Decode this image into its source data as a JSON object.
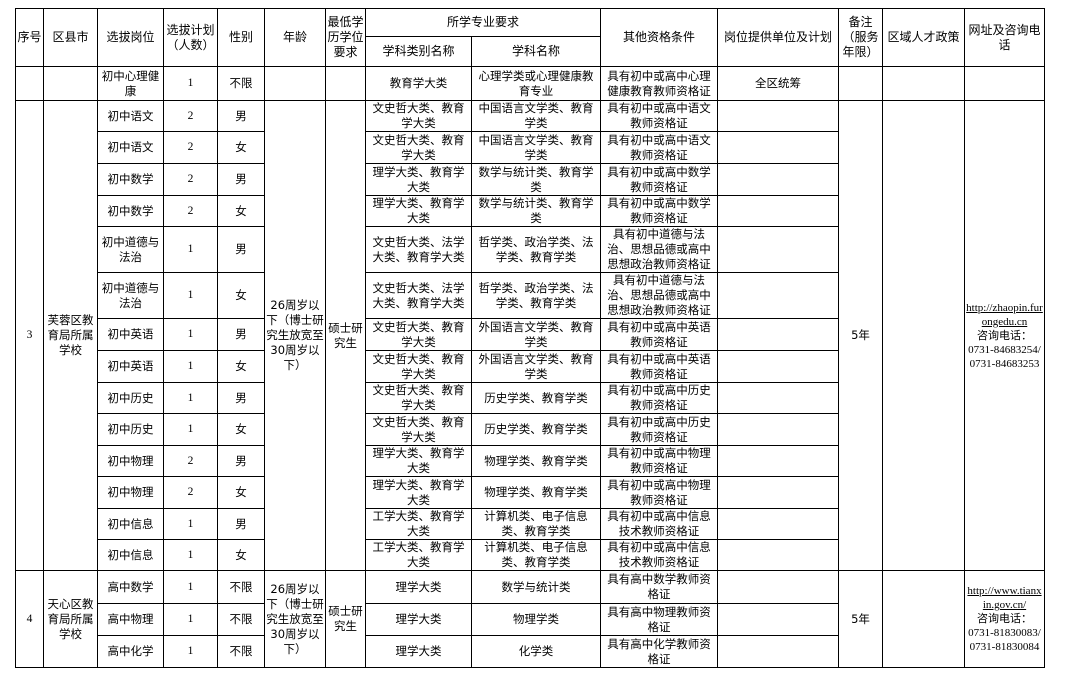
{
  "headers": {
    "seq": "序号",
    "district": "区县市",
    "post": "选拔岗位",
    "plan": "选拔计划（人数）",
    "gender": "性别",
    "age": "年龄",
    "edu": "最低学历学位要求",
    "major_req": "所学专业要求",
    "category": "学科类别名称",
    "major": "学科名称",
    "other": "其他资格条件",
    "unit": "岗位提供单位及计划",
    "remark": "备注（服务年限）",
    "policy": "区域人才政策",
    "url": "网址及咨询电话"
  },
  "groups": [
    {
      "seq": "",
      "district": "",
      "age": "",
      "edu": "",
      "remark": "",
      "policy": "",
      "url": "",
      "phone_label": "",
      "phones": "",
      "rows": [
        {
          "post": "初中心理健康",
          "plan": "1",
          "gender": "不限",
          "category": "教育学大类",
          "major": "心理学类或心理健康教育专业",
          "other": "具有初中或高中心理健康教育教师资格证",
          "unit": "全区统筹"
        }
      ]
    },
    {
      "seq": "3",
      "district": "芙蓉区教育局所属学校",
      "age": "26周岁以下（博士研究生放宽至30周岁以下）",
      "edu": "硕士研究生",
      "remark": "5年",
      "policy": "",
      "url": "http://zhaopin.furongedu.cn",
      "phone_label": "咨询电话：",
      "phones": "0731-84683254/ 0731-84683253",
      "rows": [
        {
          "post": "初中语文",
          "plan": "2",
          "gender": "男",
          "category": "文史哲大类、教育学大类",
          "major": "中国语言文学类、教育学类",
          "other": "具有初中或高中语文教师资格证",
          "unit": ""
        },
        {
          "post": "初中语文",
          "plan": "2",
          "gender": "女",
          "category": "文史哲大类、教育学大类",
          "major": "中国语言文学类、教育学类",
          "other": "具有初中或高中语文教师资格证",
          "unit": ""
        },
        {
          "post": "初中数学",
          "plan": "2",
          "gender": "男",
          "category": "理学大类、教育学大类",
          "major": "数学与统计类、教育学类",
          "other": "具有初中或高中数学教师资格证",
          "unit": ""
        },
        {
          "post": "初中数学",
          "plan": "2",
          "gender": "女",
          "category": "理学大类、教育学大类",
          "major": "数学与统计类、教育学类",
          "other": "具有初中或高中数学教师资格证",
          "unit": ""
        },
        {
          "post": "初中道德与法治",
          "plan": "1",
          "gender": "男",
          "category": "文史哲大类、法学大类、教育学大类",
          "major": "哲学类、政治学类、法学类、教育学类",
          "other": "具有初中道德与法治、思想品德或高中思想政治教师资格证",
          "unit": ""
        },
        {
          "post": "初中道德与法治",
          "plan": "1",
          "gender": "女",
          "category": "文史哲大类、法学大类、教育学大类",
          "major": "哲学类、政治学类、法学类、教育学类",
          "other": "具有初中道德与法治、思想品德或高中思想政治教师资格证",
          "unit": ""
        },
        {
          "post": "初中英语",
          "plan": "1",
          "gender": "男",
          "category": "文史哲大类、教育学大类",
          "major": "外国语言文学类、教育学类",
          "other": "具有初中或高中英语教师资格证",
          "unit": ""
        },
        {
          "post": "初中英语",
          "plan": "1",
          "gender": "女",
          "category": "文史哲大类、教育学大类",
          "major": "外国语言文学类、教育学类",
          "other": "具有初中或高中英语教师资格证",
          "unit": ""
        },
        {
          "post": "初中历史",
          "plan": "1",
          "gender": "男",
          "category": "文史哲大类、教育学大类",
          "major": "历史学类、教育学类",
          "other": "具有初中或高中历史教师资格证",
          "unit": ""
        },
        {
          "post": "初中历史",
          "plan": "1",
          "gender": "女",
          "category": "文史哲大类、教育学大类",
          "major": "历史学类、教育学类",
          "other": "具有初中或高中历史教师资格证",
          "unit": ""
        },
        {
          "post": "初中物理",
          "plan": "2",
          "gender": "男",
          "category": "理学大类、教育学大类",
          "major": "物理学类、教育学类",
          "other": "具有初中或高中物理教师资格证",
          "unit": ""
        },
        {
          "post": "初中物理",
          "plan": "2",
          "gender": "女",
          "category": "理学大类、教育学大类",
          "major": "物理学类、教育学类",
          "other": "具有初中或高中物理教师资格证",
          "unit": ""
        },
        {
          "post": "初中信息",
          "plan": "1",
          "gender": "男",
          "category": "工学大类、教育学大类",
          "major": "计算机类、电子信息类、教育学类",
          "other": "具有初中或高中信息技术教师资格证",
          "unit": ""
        },
        {
          "post": "初中信息",
          "plan": "1",
          "gender": "女",
          "category": "工学大类、教育学大类",
          "major": "计算机类、电子信息类、教育学类",
          "other": "具有初中或高中信息技术教师资格证",
          "unit": ""
        }
      ]
    },
    {
      "seq": "4",
      "district": "天心区教育局所属学校",
      "age": "26周岁以下（博士研究生放宽至30周岁以下）",
      "edu": "硕士研究生",
      "remark": "5年",
      "policy": "",
      "url": "http://www.tianxin.gov.cn/",
      "phone_label": "咨询电话：",
      "phones": "0731-81830083/ 0731-81830084",
      "rows": [
        {
          "post": "高中数学",
          "plan": "1",
          "gender": "不限",
          "category": "理学大类",
          "major": "数学与统计类",
          "other": "具有高中数学教师资格证",
          "unit": ""
        },
        {
          "post": "高中物理",
          "plan": "1",
          "gender": "不限",
          "category": "理学大类",
          "major": "物理学类",
          "other": "具有高中物理教师资格证",
          "unit": ""
        },
        {
          "post": "高中化学",
          "plan": "1",
          "gender": "不限",
          "category": "理学大类",
          "major": "化学类",
          "other": "具有高中化学教师资格证",
          "unit": ""
        }
      ]
    }
  ]
}
